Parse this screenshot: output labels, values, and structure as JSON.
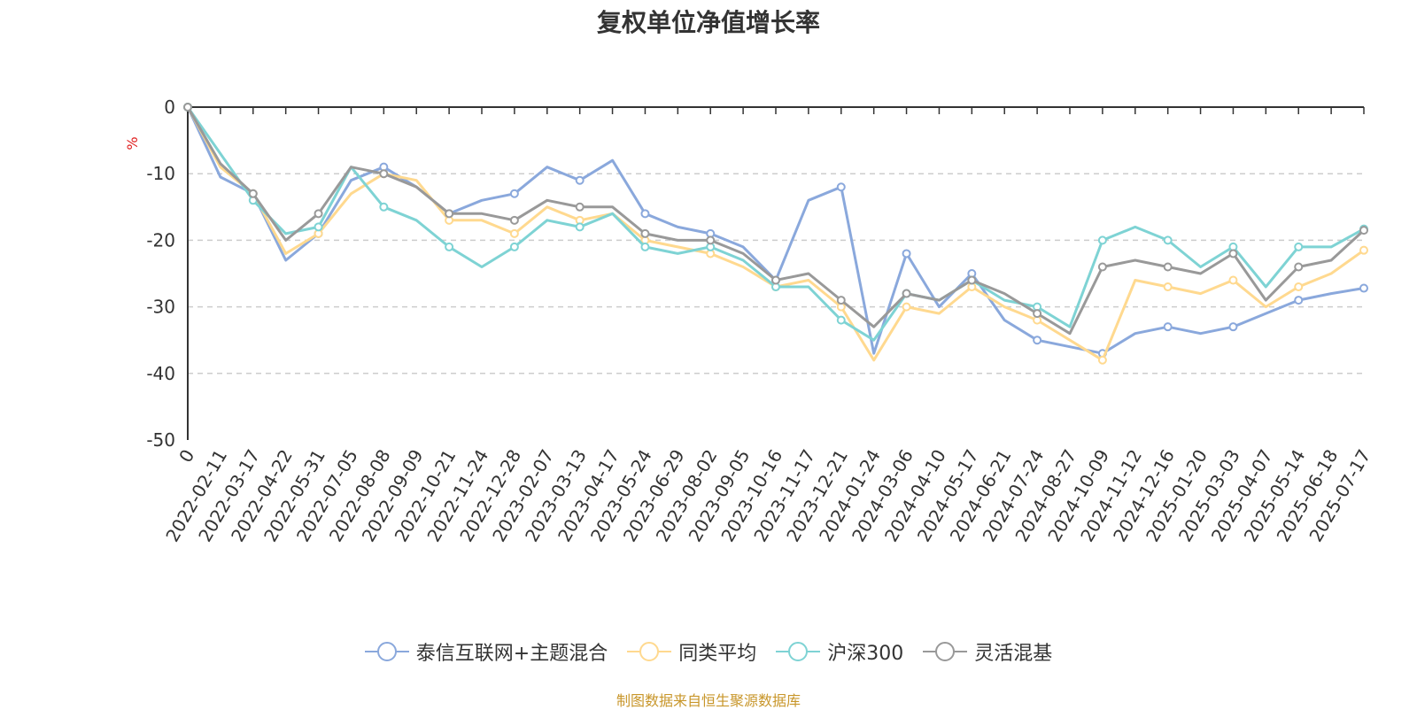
{
  "title": "复权单位净值增长率",
  "source": "制图数据来自恒生聚源数据库",
  "chart_data": {
    "type": "line",
    "title": "复权单位净值增长率",
    "ylabel": "%",
    "ylim": [
      -50,
      0
    ],
    "yticks": [
      0,
      -10,
      -20,
      -30,
      -40,
      -50
    ],
    "grid": "horizontal dashed",
    "legend_position": "bottom-center",
    "x_tick_labels": [
      "0",
      "2022-02-11",
      "2022-03-17",
      "2022-04-22",
      "2022-05-31",
      "2022-07-05",
      "2022-08-08",
      "2022-09-09",
      "2022-10-21",
      "2022-11-24",
      "2022-12-28",
      "2023-02-07",
      "2023-03-13",
      "2023-04-17",
      "2023-05-24",
      "2023-06-29",
      "2023-08-02",
      "2023-09-05",
      "2023-10-16",
      "2023-11-17",
      "2023-12-21",
      "2024-01-24",
      "2024-03-06",
      "2024-04-10",
      "2024-05-17",
      "2024-06-21",
      "2024-07-24",
      "2024-08-27",
      "2024-10-09",
      "2024-11-12",
      "2024-12-16",
      "2025-01-20",
      "2025-03-03",
      "2025-04-07",
      "2025-05-14",
      "2025-06-18",
      "2025-07-17"
    ],
    "series": [
      {
        "name": "泰信互联网+主题混合",
        "color": "#8aa8dc",
        "values": [
          0,
          -10.5,
          -13,
          -23,
          -19,
          -11,
          -9,
          -12,
          -16,
          -14,
          -13,
          -9,
          -11,
          -8,
          -16,
          -18,
          -19,
          -21,
          -26,
          -14,
          -12,
          -37,
          -22,
          -30,
          -25,
          -32,
          -35,
          -36,
          -37,
          -34,
          -33,
          -34,
          -33,
          -31,
          -29,
          -28,
          -27.2
        ]
      },
      {
        "name": "同类平均",
        "color": "#ffd98f",
        "values": [
          0,
          -9,
          -13,
          -22,
          -19,
          -13,
          -10,
          -11,
          -17,
          -17,
          -19,
          -15,
          -17,
          -16,
          -20,
          -21,
          -22,
          -24,
          -27,
          -26,
          -30,
          -38,
          -30,
          -31,
          -27,
          -30,
          -32,
          -35,
          -38,
          -26,
          -27,
          -28,
          -26,
          -30,
          -27,
          -25,
          -21.5
        ]
      },
      {
        "name": "沪深300",
        "color": "#7ed3d4",
        "values": [
          0,
          -7,
          -14,
          -19,
          -18,
          -9,
          -15,
          -17,
          -21,
          -24,
          -21,
          -17,
          -18,
          -16,
          -21,
          -22,
          -21,
          -23,
          -27,
          -27,
          -32,
          -35,
          -28,
          -29,
          -26,
          -29,
          -30,
          -33,
          -20,
          -18,
          -20,
          -24,
          -21,
          -27,
          -21,
          -21,
          -18.3
        ]
      },
      {
        "name": "灵活混基",
        "color": "#999999",
        "values": [
          0,
          -8.5,
          -13,
          -20,
          -16,
          -9,
          -10,
          -12,
          -16,
          -16,
          -17,
          -14,
          -15,
          -15,
          -19,
          -20,
          -20,
          -22,
          -26,
          -25,
          -29,
          -33,
          -28,
          -29,
          -26,
          -28,
          -31,
          -34,
          -24,
          -23,
          -24,
          -25,
          -22,
          -29,
          -24,
          -23,
          -18.5
        ]
      }
    ]
  }
}
